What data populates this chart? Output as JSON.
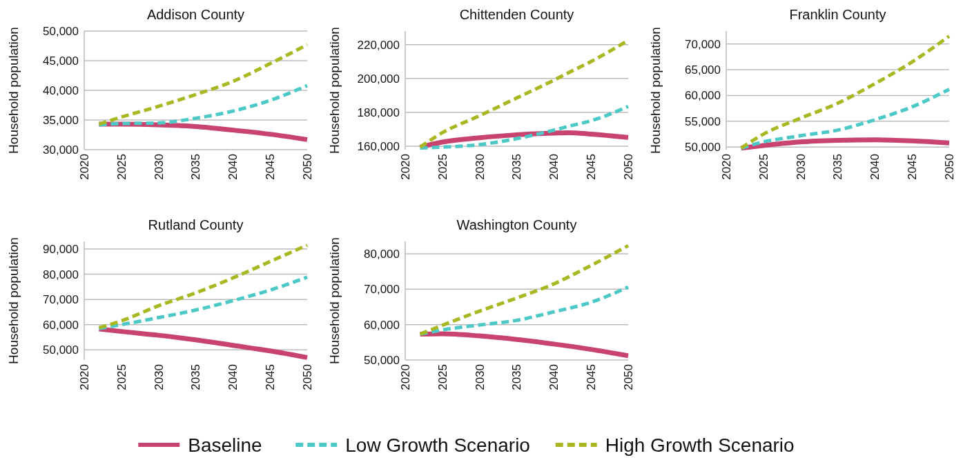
{
  "chart_data": [
    {
      "type": "line",
      "title": "Addison County",
      "ylabel": "Household population",
      "x": [
        2022,
        2025,
        2030,
        2035,
        2040,
        2045,
        2050
      ],
      "xlim": [
        2020,
        2050
      ],
      "xticks": [
        2020,
        2025,
        2030,
        2035,
        2040,
        2045,
        2050
      ],
      "ylim": [
        30000,
        50000
      ],
      "yticks": [
        {
          "value": 30000,
          "label": "30,000"
        },
        {
          "value": 35000,
          "label": "35,000"
        },
        {
          "value": 40000,
          "label": "40,000"
        },
        {
          "value": 45000,
          "label": "45,000"
        },
        {
          "value": 50000,
          "label": "50,000"
        }
      ],
      "grid": "y",
      "legend": "bottom",
      "series": [
        {
          "name": "Baseline",
          "color": "#c8446e",
          "line_style": "solid",
          "values": [
            34300,
            34300,
            34200,
            33900,
            33300,
            32600,
            31700
          ]
        },
        {
          "name": "Low Growth Scenario",
          "color": "#4cc9c6",
          "line_style": "dashed",
          "values": [
            34200,
            34400,
            34500,
            35300,
            36500,
            38300,
            40800
          ]
        },
        {
          "name": "High Growth Scenario",
          "color": "#a9b822",
          "line_style": "dashed",
          "values": [
            34300,
            35500,
            37300,
            39300,
            41500,
            44500,
            47700
          ]
        }
      ]
    },
    {
      "type": "line",
      "title": "Chittenden County",
      "ylabel": "Household population",
      "x": [
        2022,
        2025,
        2030,
        2035,
        2040,
        2042,
        2045,
        2050
      ],
      "xlim": [
        2020,
        2050
      ],
      "xticks": [
        2020,
        2025,
        2030,
        2035,
        2040,
        2045,
        2050
      ],
      "ylim": [
        158000,
        228000
      ],
      "yticks": [
        {
          "value": 160000,
          "label": "160,000"
        },
        {
          "value": 180000,
          "label": "180,000"
        },
        {
          "value": 200000,
          "label": "200,000"
        },
        {
          "value": 220000,
          "label": "220,000"
        }
      ],
      "grid": "y",
      "series": [
        {
          "color": "#c8446e",
          "line_style": "solid",
          "values": [
            159500,
            162500,
            165000,
            166800,
            167800,
            168000,
            167200,
            165200
          ]
        },
        {
          "color": "#4cc9c6",
          "line_style": "dashed",
          "values": [
            159000,
            159500,
            161000,
            164500,
            169500,
            171800,
            175000,
            183500
          ]
        },
        {
          "color": "#a9b822",
          "line_style": "dashed",
          "values": [
            159500,
            168000,
            178000,
            188500,
            199000,
            203500,
            210000,
            222500
          ]
        }
      ]
    },
    {
      "type": "line",
      "title": "Franklin County",
      "ylabel": "Household population",
      "x": [
        2022,
        2025,
        2030,
        2035,
        2040,
        2045,
        2050
      ],
      "xlim": [
        2020,
        2050
      ],
      "xticks": [
        2020,
        2025,
        2030,
        2035,
        2040,
        2045,
        2050
      ],
      "ylim": [
        49500,
        72500
      ],
      "yticks": [
        {
          "value": 50000,
          "label": "50,000"
        },
        {
          "value": 55000,
          "label": "55,000"
        },
        {
          "value": 60000,
          "label": "60,000"
        },
        {
          "value": 65000,
          "label": "65,000"
        },
        {
          "value": 70000,
          "label": "70,000"
        }
      ],
      "grid": "y",
      "series": [
        {
          "color": "#c8446e",
          "line_style": "solid",
          "values": [
            49800,
            50300,
            51000,
            51300,
            51400,
            51200,
            50800
          ]
        },
        {
          "color": "#4cc9c6",
          "line_style": "dashed",
          "values": [
            49800,
            51000,
            52200,
            53300,
            55300,
            57800,
            61200
          ]
        },
        {
          "color": "#a9b822",
          "line_style": "dashed",
          "values": [
            49800,
            52500,
            55600,
            58500,
            62300,
            66500,
            71500
          ]
        }
      ]
    },
    {
      "type": "line",
      "title": "Rutland County",
      "ylabel": "Household population",
      "x": [
        2022,
        2025,
        2030,
        2035,
        2040,
        2045,
        2050
      ],
      "xlim": [
        2020,
        2050
      ],
      "xticks": [
        2020,
        2025,
        2030,
        2035,
        2040,
        2045,
        2050
      ],
      "ylim": [
        46000,
        93000
      ],
      "yticks": [
        {
          "value": 50000,
          "label": "50,000"
        },
        {
          "value": 60000,
          "label": "60,000"
        },
        {
          "value": 70000,
          "label": "70,000"
        },
        {
          "value": 80000,
          "label": "80,000"
        },
        {
          "value": 90000,
          "label": "90,000"
        }
      ],
      "grid": "y",
      "series": [
        {
          "color": "#c8446e",
          "line_style": "solid",
          "values": [
            58300,
            57300,
            55800,
            54000,
            51800,
            49600,
            47000
          ]
        },
        {
          "color": "#4cc9c6",
          "line_style": "dashed",
          "values": [
            58500,
            60000,
            62800,
            65800,
            69500,
            73700,
            78800
          ]
        },
        {
          "color": "#a9b822",
          "line_style": "dashed",
          "values": [
            58800,
            61500,
            67500,
            72600,
            78500,
            85000,
            91500
          ]
        }
      ]
    },
    {
      "type": "line",
      "title": "Washington County",
      "ylabel": "Household population",
      "x": [
        2022,
        2025,
        2030,
        2035,
        2040,
        2045,
        2050
      ],
      "xlim": [
        2020,
        2050
      ],
      "xticks": [
        2020,
        2025,
        2030,
        2035,
        2040,
        2045,
        2050
      ],
      "ylim": [
        50000,
        83500
      ],
      "yticks": [
        {
          "value": 50000,
          "label": "50,000"
        },
        {
          "value": 60000,
          "label": "60,000"
        },
        {
          "value": 70000,
          "label": "70,000"
        },
        {
          "value": 80000,
          "label": "80,000"
        }
      ],
      "grid": "y",
      "series": [
        {
          "color": "#c8446e",
          "line_style": "solid",
          "values": [
            57300,
            57400,
            56800,
            55800,
            54500,
            53000,
            51200
          ]
        },
        {
          "color": "#4cc9c6",
          "line_style": "dashed",
          "values": [
            57300,
            58500,
            59900,
            61200,
            63600,
            66300,
            70600
          ]
        },
        {
          "color": "#a9b822",
          "line_style": "dashed",
          "values": [
            57300,
            59800,
            63800,
            67500,
            71500,
            76700,
            82300
          ]
        }
      ]
    }
  ]
}
